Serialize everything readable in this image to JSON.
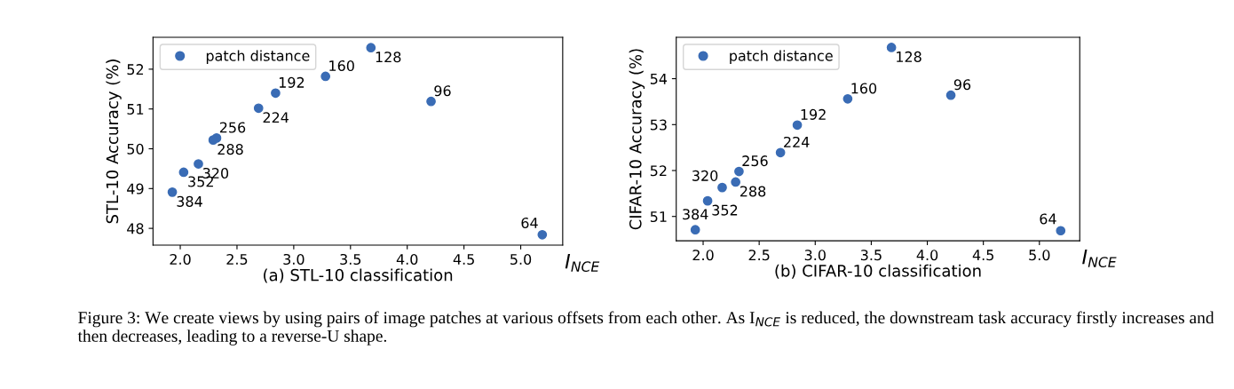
{
  "chart_data": [
    {
      "type": "scatter",
      "xlabel": "(a) STL-10 classification",
      "ylabel": "STL-10 Accuracy (%)",
      "xlim": [
        1.76,
        5.37
      ],
      "ylim": [
        47.58,
        52.8
      ],
      "xticks": [
        {
          "value": 2,
          "label": "2.0"
        },
        2.5,
        {
          "value": 3,
          "label": "3.0"
        },
        3.5,
        {
          "value": 4,
          "label": "4.0"
        },
        4.5,
        {
          "value": 5,
          "label": "5.0"
        }
      ],
      "yticks": [
        48,
        49,
        50,
        51,
        52
      ],
      "legend": "top left",
      "marker": "circle",
      "series": [
        {
          "name": "patch distance",
          "color": "#3a6cb5",
          "x": [
            5.19,
            4.21,
            3.68,
            3.28,
            2.84,
            2.69,
            2.32,
            2.29,
            2.16,
            2.03,
            1.93
          ],
          "values": [
            47.84,
            51.19,
            52.54,
            51.82,
            51.4,
            51.02,
            50.27,
            50.22,
            49.62,
            49.41,
            48.91
          ]
        }
      ],
      "annotations": [
        "I$_{NCE}$",
        {
          "text": "64",
          "x": 5.19,
          "y": 47.84
        },
        {
          "text": "96",
          "x": 4.21,
          "y": 51.19
        },
        {
          "text": "128",
          "x": 3.68,
          "y": 52.54
        },
        {
          "text": "160",
          "x": 3.28,
          "y": 51.82
        },
        {
          "text": "192",
          "x": 2.84,
          "y": 51.4
        },
        {
          "text": "224",
          "x": 2.69,
          "y": 51.02
        },
        {
          "text": "256",
          "x": 2.32,
          "y": 50.27
        },
        {
          "text": "288",
          "x": 2.29,
          "y": 50.22
        },
        {
          "text": "320",
          "x": 2.16,
          "y": 49.62
        },
        {
          "text": "352",
          "x": 2.03,
          "y": 49.41
        },
        {
          "text": "384",
          "x": 1.93,
          "y": 48.91
        }
      ]
    },
    {
      "type": "scatter",
      "xlabel": "(b) CIFAR-10 classification",
      "ylabel": "CIFAR-10 Accuracy (%)",
      "xlim": [
        1.76,
        5.36
      ],
      "ylim": [
        50.47,
        54.9
      ],
      "xticks": [
        {
          "value": 2,
          "label": "2.0"
        },
        2.5,
        {
          "value": 3,
          "label": "3.0"
        },
        3.5,
        {
          "value": 4,
          "label": "4.0"
        },
        4.5,
        {
          "value": 5,
          "label": "5.0"
        }
      ],
      "yticks": [
        51,
        52,
        53,
        54
      ],
      "legend": "top left",
      "marker": "circle",
      "series": [
        {
          "name": "patch distance",
          "color": "#3a6cb5",
          "x": [
            5.19,
            4.21,
            3.68,
            3.29,
            2.84,
            2.69,
            2.32,
            2.29,
            2.17,
            2.04,
            1.93
          ],
          "values": [
            50.69,
            53.64,
            54.68,
            53.56,
            52.99,
            52.39,
            51.98,
            51.75,
            51.63,
            51.34,
            50.71
          ]
        }
      ],
      "annotations": [
        "I$_{NCE}$",
        "Figure 3: We create views by using pairs of image patches at various offsets from each other. As I$_{NCE}$ is reduced, the downstream task accuracy firstly increases and then decreases, leading to a reverse-U shape.",
        {
          "text": "64",
          "x": 5.19,
          "y": 50.69
        },
        {
          "text": "96",
          "x": 4.21,
          "y": 53.64
        },
        {
          "text": "128",
          "x": 3.68,
          "y": 54.68
        },
        {
          "text": "160",
          "x": 3.29,
          "y": 53.56
        },
        {
          "text": "192",
          "x": 2.84,
          "y": 52.99
        },
        {
          "text": "224",
          "x": 2.69,
          "y": 52.39
        },
        {
          "text": "256",
          "x": 2.32,
          "y": 51.98
        },
        {
          "text": "288",
          "x": 2.29,
          "y": 51.75
        },
        {
          "text": "320",
          "x": 2.17,
          "y": 51.63
        },
        {
          "text": "352",
          "x": 2.04,
          "y": 51.34
        },
        {
          "text": "384",
          "x": 1.93,
          "y": 50.71
        }
      ]
    }
  ]
}
